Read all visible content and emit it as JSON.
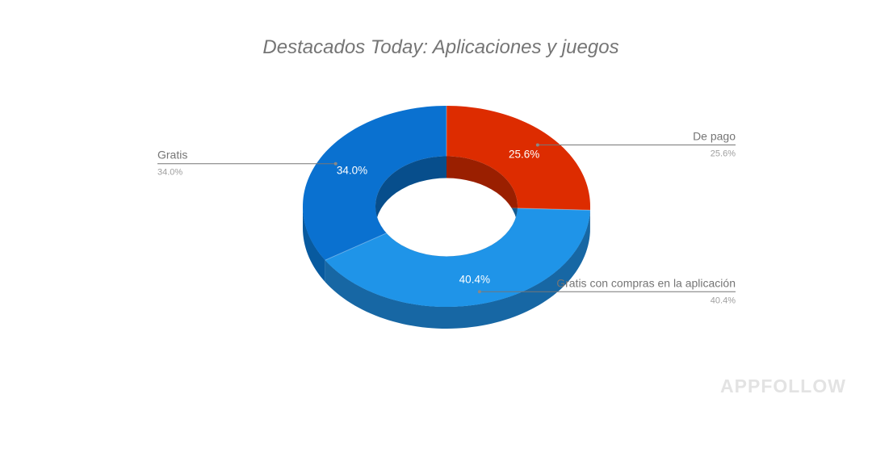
{
  "chart_data": {
    "type": "pie",
    "variant": "3d-donut",
    "title": "Destacados Today: Aplicaciones y juegos",
    "slices": [
      {
        "label": "De pago",
        "value": 25.6,
        "display": "25.6%",
        "color": "#dd2c00",
        "side_color": "#b32400",
        "inner_color": "#9a1f00",
        "legend_side": "right"
      },
      {
        "label": "Gratis con compras en la aplicación",
        "value": 40.4,
        "display": "40.4%",
        "color": "#1f94e8",
        "side_color": "#1767a4",
        "inner_color": "#135a90",
        "legend_side": "right"
      },
      {
        "label": "Gratis",
        "value": 34.0,
        "display": "34.0%",
        "color": "#0a71d0",
        "side_color": "#085a9f",
        "inner_color": "#074e8c",
        "legend_side": "left"
      }
    ],
    "start_angle": "top",
    "direction": "clockwise"
  },
  "watermark": "APPFOLLOW"
}
